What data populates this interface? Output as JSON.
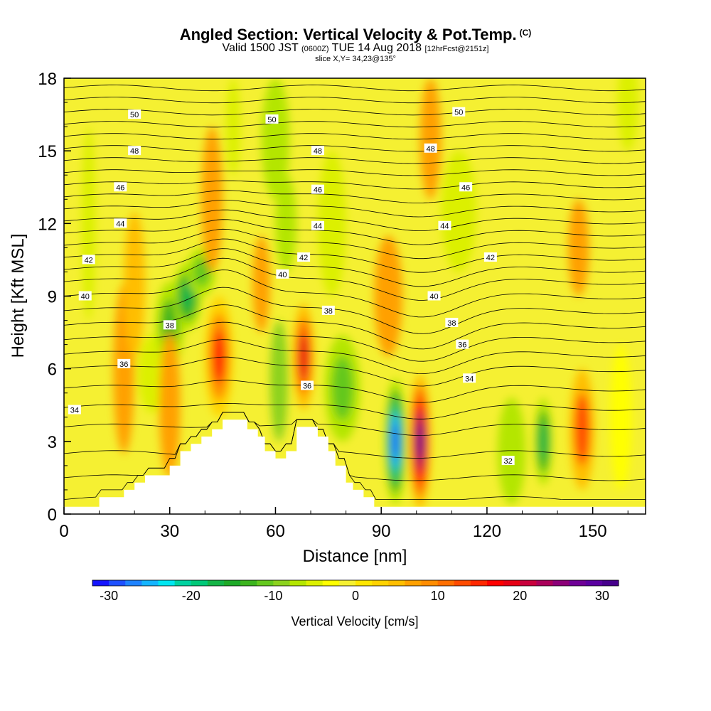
{
  "header": {
    "title": "Angled Section: Vertical Velocity & Pot.Temp.",
    "copyright": "(C)",
    "valid_prefix": "Valid 1500 JST",
    "valid_utc": "(0600Z)",
    "valid_date": "TUE 14 Aug 2018",
    "forecast": "[12hrFcst@2151z]",
    "slice": "slice X,Y= 34,23@135°"
  },
  "chart_data": {
    "type": "heatmap",
    "xlabel": "Distance [nm]",
    "ylabel": "Height [Kft MSL]",
    "xlim": [
      0,
      165
    ],
    "ylim": [
      0,
      18
    ],
    "xticks": [
      0,
      30,
      60,
      90,
      120,
      150
    ],
    "yticks": [
      0,
      3,
      6,
      9,
      12,
      15,
      18
    ],
    "colorbar": {
      "label": "Vertical Velocity [cm/s]",
      "min": -32,
      "max": 32,
      "step": 2,
      "ticks": [
        -30,
        -20,
        -10,
        0,
        10,
        20,
        30
      ],
      "colors": [
        "#1414ff",
        "#1e50ff",
        "#1e82ff",
        "#14b4ff",
        "#00e6f0",
        "#00d2a0",
        "#00c878",
        "#14b446",
        "#1eaa28",
        "#3cb41e",
        "#64c81e",
        "#8cd21e",
        "#b4e600",
        "#dcf000",
        "#ffff00",
        "#f5f032",
        "#ffe600",
        "#ffd200",
        "#ffbe00",
        "#ffa000",
        "#ff8c00",
        "#ff6e00",
        "#ff4b00",
        "#ff2800",
        "#ff0000",
        "#e60014",
        "#c8003c",
        "#aa005a",
        "#8c0078",
        "#6e0096",
        "#5a00a0",
        "#46008c"
      ]
    },
    "background_value": -2,
    "velocity_cells": [
      {
        "x": 17,
        "z": 6.0,
        "w": 3,
        "h": 3.5,
        "value": 6
      },
      {
        "x": 20,
        "z": 9.5,
        "w": 3,
        "h": 3,
        "value": 4
      },
      {
        "x": 25,
        "z": 5.8,
        "w": 4,
        "h": 1.6,
        "value": -6
      },
      {
        "x": 30,
        "z": 7.8,
        "w": 4,
        "h": 1.8,
        "value": -14
      },
      {
        "x": 35,
        "z": 9.0,
        "w": 4,
        "h": 1.4,
        "value": -18
      },
      {
        "x": 39,
        "z": 10.0,
        "w": 4,
        "h": 1.0,
        "value": -12
      },
      {
        "x": 30,
        "z": 4.5,
        "w": 3,
        "h": 3,
        "value": 6
      },
      {
        "x": 44,
        "z": 6.5,
        "w": 4,
        "h": 2.5,
        "value": 14
      },
      {
        "x": 42,
        "z": 13.0,
        "w": 3,
        "h": 3,
        "value": 6
      },
      {
        "x": 48,
        "z": 16.0,
        "w": 2,
        "h": 2,
        "value": -6
      },
      {
        "x": 60,
        "z": 15.5,
        "w": 4,
        "h": 2.5,
        "value": -8
      },
      {
        "x": 63,
        "z": 12.0,
        "w": 3,
        "h": 2,
        "value": -8
      },
      {
        "x": 61,
        "z": 5.5,
        "w": 2.5,
        "h": 2.5,
        "value": -10
      },
      {
        "x": 68,
        "z": 6.5,
        "w": 3,
        "h": 2.2,
        "value": 18
      },
      {
        "x": 56,
        "z": 9.5,
        "w": 2.5,
        "h": 2,
        "value": 6
      },
      {
        "x": 79,
        "z": 5.2,
        "w": 5,
        "h": 2.2,
        "value": -12
      },
      {
        "x": 76,
        "z": 12.0,
        "w": 4,
        "h": 3,
        "value": -6
      },
      {
        "x": 94,
        "z": 3.0,
        "w": 3,
        "h": 2.6,
        "value": -30
      },
      {
        "x": 101,
        "z": 3.0,
        "w": 3,
        "h": 2.8,
        "value": 30
      },
      {
        "x": 92,
        "z": 9.0,
        "w": 4,
        "h": 2.5,
        "value": 6
      },
      {
        "x": 104,
        "z": 15.5,
        "w": 3,
        "h": 2.5,
        "value": 6
      },
      {
        "x": 112,
        "z": 12.5,
        "w": 5,
        "h": 2.5,
        "value": -6
      },
      {
        "x": 127,
        "z": 2.6,
        "w": 4,
        "h": 2.2,
        "value": -8
      },
      {
        "x": 136,
        "z": 3.0,
        "w": 2.5,
        "h": 1.8,
        "value": -18
      },
      {
        "x": 147,
        "z": 3.5,
        "w": 3.5,
        "h": 2.5,
        "value": 12
      },
      {
        "x": 158,
        "z": 4.0,
        "w": 3,
        "h": 3,
        "value": -4
      },
      {
        "x": 160,
        "z": 17.0,
        "w": 3,
        "h": 2,
        "value": -6
      },
      {
        "x": 7,
        "z": 12.0,
        "w": 2,
        "h": 4,
        "value": -6
      },
      {
        "x": 146,
        "z": 11.0,
        "w": 3,
        "h": 2,
        "value": 6
      }
    ],
    "terrain_profile": [
      [
        0,
        0.3
      ],
      [
        10,
        0.3
      ],
      [
        10,
        0.7
      ],
      [
        17,
        0.7
      ],
      [
        17,
        1.0
      ],
      [
        20,
        1.0
      ],
      [
        20,
        1.3
      ],
      [
        23,
        1.3
      ],
      [
        23,
        1.6
      ],
      [
        30,
        1.6
      ],
      [
        30,
        2.0
      ],
      [
        33,
        2.0
      ],
      [
        33,
        2.6
      ],
      [
        36,
        2.6
      ],
      [
        36,
        2.9
      ],
      [
        39,
        2.9
      ],
      [
        39,
        3.2
      ],
      [
        42,
        3.2
      ],
      [
        42,
        3.5
      ],
      [
        45,
        3.5
      ],
      [
        45,
        3.9
      ],
      [
        52,
        3.9
      ],
      [
        52,
        3.5
      ],
      [
        55,
        3.5
      ],
      [
        55,
        3.2
      ],
      [
        57,
        3.2
      ],
      [
        57,
        2.6
      ],
      [
        60,
        2.6
      ],
      [
        60,
        2.3
      ],
      [
        63,
        2.3
      ],
      [
        63,
        2.6
      ],
      [
        66,
        2.6
      ],
      [
        66,
        3.6
      ],
      [
        72,
        3.6
      ],
      [
        72,
        3.2
      ],
      [
        75,
        3.2
      ],
      [
        75,
        2.6
      ],
      [
        77,
        2.6
      ],
      [
        77,
        2.0
      ],
      [
        80,
        2.0
      ],
      [
        80,
        1.3
      ],
      [
        82,
        1.3
      ],
      [
        82,
        1.0
      ],
      [
        85,
        1.0
      ],
      [
        85,
        0.7
      ],
      [
        88,
        0.7
      ],
      [
        88,
        0.3
      ],
      [
        165,
        0.3
      ]
    ],
    "theta_contours": {
      "base_heights_kft": [
        0.6,
        1.5,
        2.5,
        3.6,
        4.4,
        5.2,
        6.0,
        6.6,
        7.2,
        7.8,
        8.4,
        9.0,
        9.6,
        10.1,
        10.6,
        11.1,
        11.6,
        12.1,
        12.6,
        13.1,
        13.6,
        14.1,
        14.6,
        15.1,
        15.6,
        16.1,
        16.6,
        17.1,
        17.6
      ],
      "labels": [
        {
          "text": "50",
          "x": 20,
          "z": 16.5
        },
        {
          "text": "50",
          "x": 59,
          "z": 16.3
        },
        {
          "text": "50",
          "x": 112,
          "z": 16.6
        },
        {
          "text": "48",
          "x": 20,
          "z": 15.0
        },
        {
          "text": "48",
          "x": 72,
          "z": 15.0
        },
        {
          "text": "48",
          "x": 104,
          "z": 15.1
        },
        {
          "text": "46",
          "x": 16,
          "z": 13.5
        },
        {
          "text": "46",
          "x": 72,
          "z": 13.4
        },
        {
          "text": "46",
          "x": 114,
          "z": 13.5
        },
        {
          "text": "44",
          "x": 16,
          "z": 12.0
        },
        {
          "text": "44",
          "x": 72,
          "z": 11.9
        },
        {
          "text": "44",
          "x": 108,
          "z": 11.9
        },
        {
          "text": "42",
          "x": 7,
          "z": 10.5
        },
        {
          "text": "42",
          "x": 68,
          "z": 10.6
        },
        {
          "text": "42",
          "x": 121,
          "z": 10.6
        },
        {
          "text": "40",
          "x": 6,
          "z": 9.0
        },
        {
          "text": "40",
          "x": 62,
          "z": 9.9
        },
        {
          "text": "40",
          "x": 105,
          "z": 9.0
        },
        {
          "text": "38",
          "x": 30,
          "z": 7.8
        },
        {
          "text": "38",
          "x": 75,
          "z": 8.4
        },
        {
          "text": "38",
          "x": 110,
          "z": 7.9
        },
        {
          "text": "36",
          "x": 17,
          "z": 6.2
        },
        {
          "text": "36",
          "x": 113,
          "z": 7.0
        },
        {
          "text": "36",
          "x": 69,
          "z": 5.3
        },
        {
          "text": "34",
          "x": 3,
          "z": 4.3
        },
        {
          "text": "34",
          "x": 115,
          "z": 5.6
        },
        {
          "text": "32",
          "x": 126,
          "z": 2.2
        }
      ]
    }
  }
}
